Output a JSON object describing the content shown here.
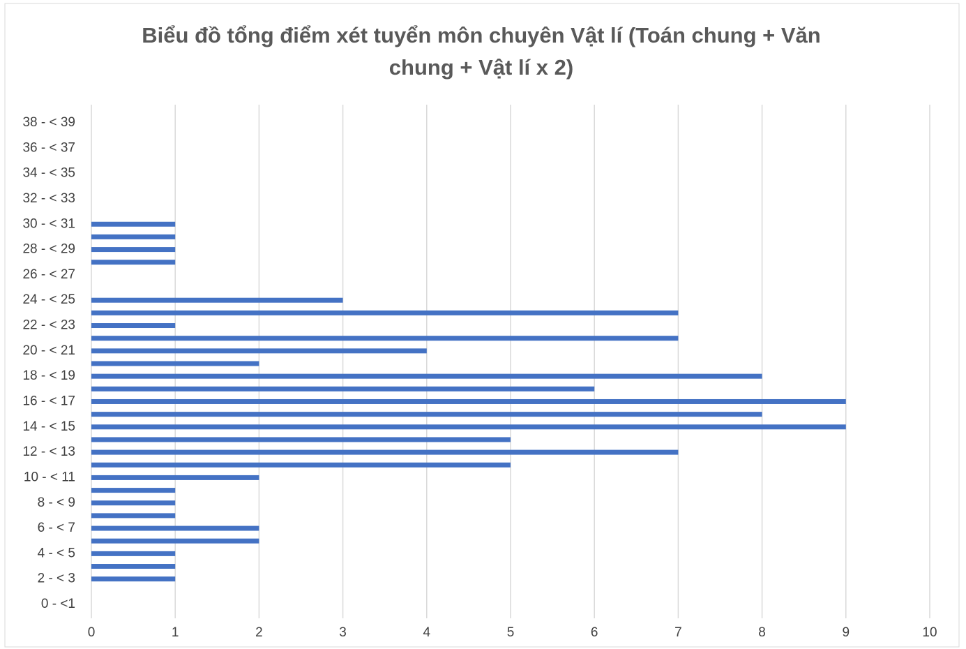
{
  "chart_data": {
    "type": "bar",
    "orientation": "horizontal",
    "title": "Biểu đồ tổng điểm xét tuyển môn chuyên Vật lí (Toán chung + Văn chung + Vật lí x 2)",
    "categories": [
      "0 - <1",
      null,
      "2 - < 3",
      null,
      "4 - < 5",
      null,
      "6 - < 7",
      null,
      "8 - < 9",
      null,
      "10 - < 11",
      null,
      "12 - < 13",
      null,
      "14 - < 15",
      null,
      "16 - < 17",
      null,
      "18 - < 19",
      null,
      "20 - < 21",
      null,
      "22 - < 23",
      null,
      "24 - < 25",
      null,
      "26 - < 27",
      null,
      "28 - < 29",
      null,
      "30 - < 31",
      null,
      "32 - < 33",
      null,
      "34 - < 35",
      null,
      "36 - < 37",
      null,
      "38 - < 39"
    ],
    "values": [
      0,
      0,
      1,
      1,
      1,
      2,
      2,
      1,
      1,
      1,
      2,
      5,
      7,
      5,
      9,
      8,
      9,
      6,
      8,
      2,
      4,
      7,
      1,
      7,
      3,
      0,
      0,
      1,
      1,
      1,
      1,
      0,
      0,
      0,
      0,
      0,
      0,
      0,
      0
    ],
    "color": "#4472c4",
    "xlim": [
      0,
      10
    ],
    "xticks": [
      0,
      1,
      2,
      3,
      4,
      5,
      6,
      7,
      8,
      9,
      10
    ],
    "grid": true
  }
}
